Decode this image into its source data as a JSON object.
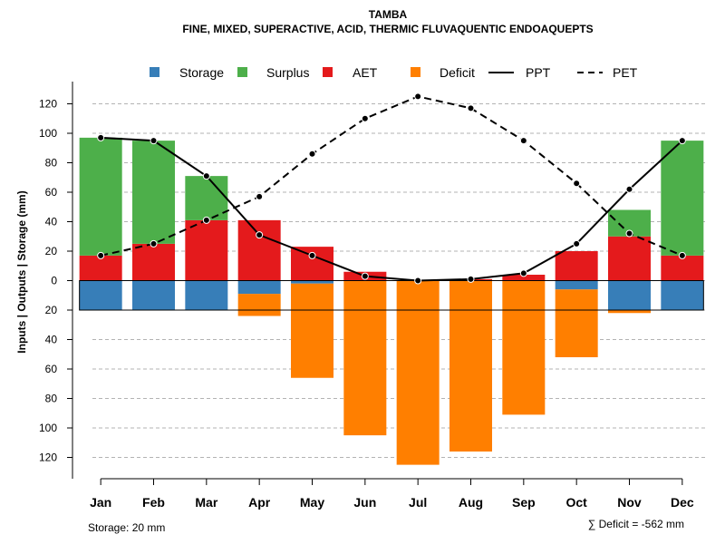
{
  "chart_data": {
    "type": "bar",
    "title": "TAMBA",
    "subtitle": "FINE, MIXED, SUPERACTIVE, ACID, THERMIC FLUVAQUENTIC ENDOAQUEPTS",
    "ylabel": "Inputs | Outputs | Storage    (mm)",
    "categories": [
      "Jan",
      "Feb",
      "Mar",
      "Apr",
      "May",
      "Jun",
      "Jul",
      "Aug",
      "Sep",
      "Oct",
      "Nov",
      "Dec"
    ],
    "y_ticks": [
      120,
      100,
      80,
      60,
      40,
      20,
      0,
      20,
      40,
      60,
      80,
      100,
      120
    ],
    "ylim": [
      -130,
      130
    ],
    "grid": true,
    "legend": [
      "Storage",
      "Surplus",
      "AET",
      "Deficit",
      "PPT",
      "PET"
    ],
    "colors": {
      "storage": "#377eb8",
      "surplus": "#4daf4a",
      "aet": "#e41a1c",
      "deficit": "#ff7f00",
      "line": "#000000",
      "grid": "#b3b3b3"
    },
    "series": [
      {
        "name": "AET",
        "values": [
          17,
          25,
          41,
          41,
          23,
          6,
          0,
          1,
          4,
          20,
          30,
          17
        ]
      },
      {
        "name": "Surplus",
        "values": [
          80,
          70,
          30,
          0,
          0,
          0,
          0,
          0,
          0,
          0,
          18,
          78
        ]
      },
      {
        "name": "Storage",
        "values": [
          20,
          20,
          20,
          9,
          2,
          0,
          0,
          0,
          0,
          6,
          20,
          20
        ]
      },
      {
        "name": "Deficit",
        "values": [
          0,
          0,
          0,
          15,
          64,
          105,
          125,
          116,
          91,
          46,
          2,
          0
        ]
      },
      {
        "name": "PPT",
        "values": [
          97,
          95,
          71,
          31,
          17,
          3,
          0,
          1,
          5,
          25,
          62,
          95
        ]
      },
      {
        "name": "PET",
        "values": [
          17,
          25,
          41,
          57,
          86,
          110,
          125,
          117,
          95,
          66,
          32,
          17
        ]
      }
    ],
    "storage_capacity": 20,
    "footer_left": "Storage: 20 mm",
    "footer_right": "∑ Deficit = -562 mm"
  }
}
